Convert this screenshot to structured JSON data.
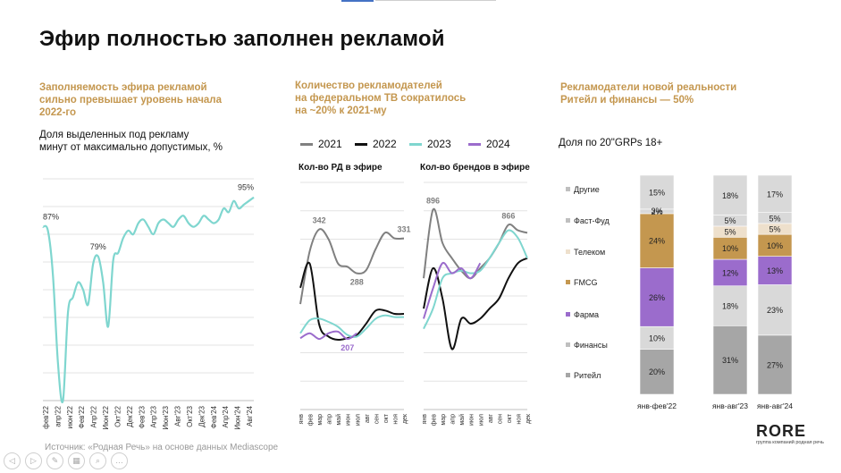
{
  "page": {
    "title": "Эфир полностью заполнен рекламой",
    "source": "Источник: «Родная Речь» на основе данных Mediascope",
    "logo": "RORE",
    "logo_sub": "группа компаний родная речь"
  },
  "colors": {
    "gold": "#c4974f",
    "teal": "#7fd6cf",
    "gray2021": "#808080",
    "black2022": "#111111",
    "purple2024": "#9b6ccc"
  },
  "panel1": {
    "heading": "Заполняемость эфира рекламой сильно превышает уровень начала 2022-го",
    "heading_lines": [
      "Заполняемость эфира рекламой",
      "сильно превышает уровень начала",
      "2022-го"
    ],
    "caption_lines": [
      "Доля выделенных под рекламу",
      "минут от максимально допустимых, %"
    ]
  },
  "panel2": {
    "heading_lines": [
      "Количество рекламодателей",
      "на федеральном ТВ сократилось",
      "на ~20% к 2021-му"
    ],
    "legend": [
      "2021",
      "2022",
      "2023",
      "2024"
    ],
    "sub_a": "Кол-во РД в эфире",
    "sub_b": "Кол-во брендов в эфире"
  },
  "panel3": {
    "heading_lines": [
      "Рекламодатели новой реальности",
      "Ритейл и финансы — 50%"
    ],
    "caption": "Доля по 20\"GRPs 18+"
  },
  "chart_data": [
    {
      "type": "line",
      "id": "fill_rate",
      "series": [
        {
          "values": [
            87,
            86,
            74,
            50,
            40,
            64,
            68,
            72,
            70,
            66,
            77,
            79,
            72,
            60,
            78,
            80,
            84,
            86,
            85,
            88,
            89,
            87,
            85,
            88,
            89,
            88,
            87,
            89,
            90,
            88,
            87,
            88,
            90,
            89,
            88,
            89,
            92,
            91,
            94,
            92,
            93,
            94,
            95
          ]
        }
      ],
      "x_labels": [
        "фев'22",
        "апр'22",
        "июн'22",
        "Фев'22",
        "Апр'22",
        "Июн'22",
        "Окт'22",
        "Дек'22",
        "Фев'23",
        "Апр'23",
        "Июн'23",
        "Авг'23",
        "Окт'23",
        "Дек'23",
        "Фев'24",
        "Апр'24",
        "Июн'24",
        "Авг'24"
      ],
      "annotations": [
        {
          "label": "87%",
          "index": 0
        },
        {
          "label": "79%",
          "index": 11
        },
        {
          "label": "95%",
          "index": 42
        }
      ],
      "ylim": [
        40,
        100
      ]
    },
    {
      "type": "line",
      "id": "advertisers_count",
      "title": "Кол-во РД в эфире",
      "x_labels": [
        "янв",
        "фев",
        "мар",
        "апр",
        "май",
        "июн",
        "июл",
        "авг",
        "сен",
        "окт",
        "ноя",
        "дек"
      ],
      "series": [
        {
          "name": "2021",
          "values": [
            250,
            315,
            342,
            330,
            300,
            296,
            288,
            292,
            318,
            338,
            331,
            331
          ]
        },
        {
          "name": "2022",
          "values": [
            270,
            300,
            225,
            210,
            206,
            208,
            212,
            226,
            242,
            242,
            238,
            238
          ]
        },
        {
          "name": "2023",
          "values": [
            214,
            230,
            232,
            228,
            222,
            212,
            210,
            220,
            232,
            236,
            234,
            234
          ]
        },
        {
          "name": "2024",
          "values": [
            208,
            214,
            207,
            214,
            216,
            207,
            214
          ]
        }
      ],
      "annotations": [
        {
          "label": "342",
          "index": 2
        },
        {
          "label": "288",
          "index": 6
        },
        {
          "label": "331",
          "index": 11
        },
        {
          "label": "207",
          "index": 5
        }
      ],
      "ylim": [
        120,
        400
      ]
    },
    {
      "type": "line",
      "id": "brands_count",
      "title": "Кол-во брендов в эфире",
      "x_labels": [
        "янв",
        "фев",
        "мар",
        "апр",
        "май",
        "июн",
        "июл",
        "авг",
        "сен",
        "окт",
        "ноя",
        "дек"
      ],
      "series": [
        {
          "name": "2021",
          "values": [
            760,
            896,
            830,
            800,
            775,
            760,
            780,
            800,
            830,
            866,
            855,
            850
          ]
        },
        {
          "name": "2022",
          "values": [
            700,
            780,
            720,
            620,
            680,
            670,
            680,
            700,
            720,
            760,
            790,
            800
          ]
        },
        {
          "name": "2023",
          "values": [
            660,
            700,
            760,
            770,
            775,
            770,
            775,
            800,
            830,
            855,
            840,
            800
          ]
        },
        {
          "name": "2024",
          "values": [
            680,
            740,
            790,
            770,
            780,
            760,
            790
          ]
        }
      ],
      "annotations": [
        {
          "label": "896",
          "index": 1
        },
        {
          "label": "866",
          "index": 9
        }
      ],
      "ylim": [
        500,
        950
      ]
    },
    {
      "type": "bar",
      "id": "advertiser_share",
      "stacked": true,
      "categories": [
        "янв-фев'22",
        "янв-авг'23",
        "янв-авг'24"
      ],
      "series": [
        {
          "name": "Ритейл",
          "color": "#a6a6a6",
          "values": [
            20,
            31,
            27
          ]
        },
        {
          "name": "Финансы",
          "color": "#d9d9d9",
          "values": [
            10,
            18,
            23
          ]
        },
        {
          "name": "Фарма",
          "color": "#9b6ccc",
          "values": [
            26,
            12,
            13
          ]
        },
        {
          "name": "FMCG",
          "color": "#c4974f",
          "values": [
            24,
            10,
            10
          ]
        },
        {
          "name": "Телеком",
          "color": "#eee0cc",
          "values": [
            0,
            5,
            5
          ]
        },
        {
          "name": "Фаст-Фуд",
          "color": "#d9d9d9",
          "values": [
            2,
            5,
            5
          ]
        },
        {
          "name": "Другие",
          "color": "#d9d9d9",
          "values": [
            15,
            18,
            17
          ]
        }
      ],
      "extra_labels": [
        {
          "label": "3%",
          "category": 0
        }
      ],
      "ylim": [
        0,
        100
      ]
    }
  ]
}
